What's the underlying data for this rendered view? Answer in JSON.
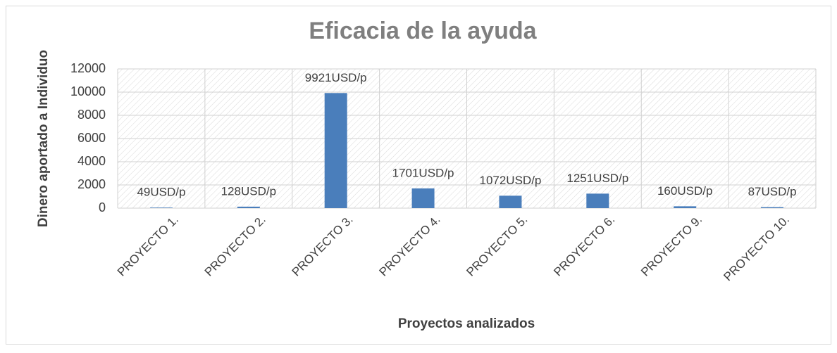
{
  "chart_data": {
    "type": "bar",
    "title": "Eficacia de la ayuda",
    "x_label": "Proyectos analizados",
    "y_label": "Dinero aportado a Individuo",
    "categories": [
      "PROYECTO 1.",
      "PROYECTO 2.",
      "PROYECTO 3.",
      "PROYECTO 4.",
      "PROYECTO 5.",
      "PROYECTO 6.",
      "PROYECTO 9.",
      "PROYECTO 10."
    ],
    "values": [
      49,
      128,
      9921,
      1701,
      1072,
      1251,
      160,
      87
    ],
    "value_labels": [
      "49USD/p",
      "128USD/p",
      "9921USD/p",
      "1701USD/p",
      "1072USD/p",
      "1251USD/p",
      "160USD/p",
      "87USD/p"
    ],
    "color": "#4a7ebb",
    "ylim": [
      0,
      12000
    ],
    "yticks": [
      0,
      2000,
      4000,
      6000,
      8000,
      10000,
      12000
    ],
    "grid": true
  }
}
